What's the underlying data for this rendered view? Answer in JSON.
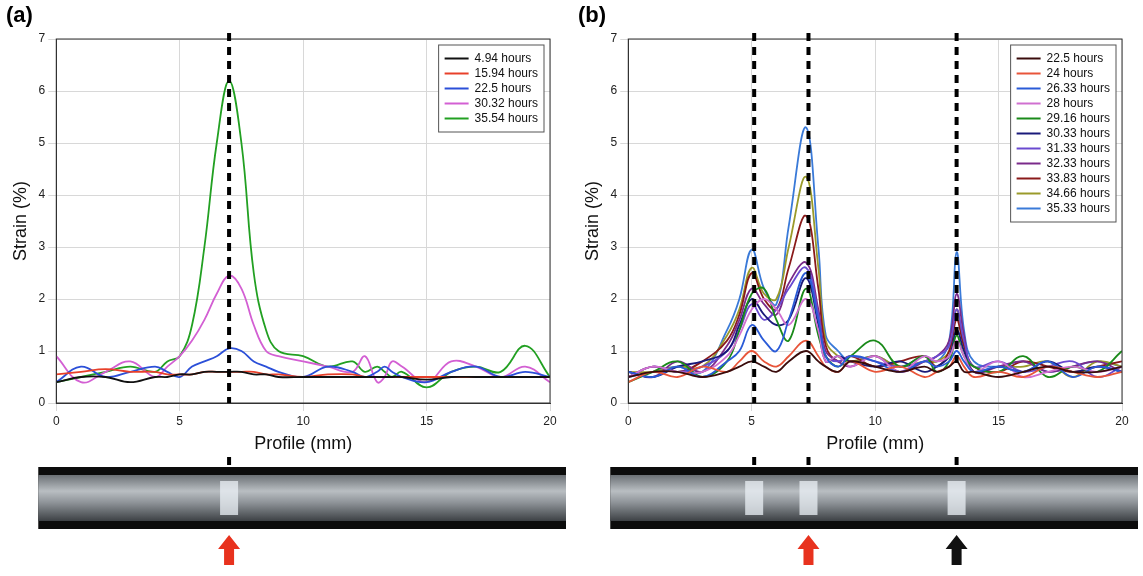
{
  "chart_data": [
    {
      "type": "line",
      "panel_label": "(a)",
      "x_label": "Profile (mm)",
      "y_label": "Strain (%)",
      "xlim": [
        0,
        20
      ],
      "xticks": [
        0,
        5,
        10,
        15,
        20
      ],
      "ylim": [
        0,
        7
      ],
      "yticks": [
        0,
        1,
        2,
        3,
        4,
        5,
        6,
        7
      ],
      "grid": true,
      "legend": "upper right",
      "x": [
        0,
        1,
        2,
        3,
        4,
        4.5,
        5,
        5.5,
        6,
        6.5,
        7,
        7.5,
        8,
        8.5,
        9,
        10,
        11,
        12,
        12.5,
        13,
        13.3,
        13.6,
        14,
        15,
        16,
        17,
        18,
        19,
        20
      ],
      "series": [
        {
          "name": "4.94 hours",
          "color": "#111111",
          "values": [
            0.4,
            0.5,
            0.5,
            0.4,
            0.5,
            0.5,
            0.55,
            0.55,
            0.6,
            0.6,
            0.6,
            0.6,
            0.55,
            0.55,
            0.5,
            0.5,
            0.5,
            0.5,
            0.5,
            0.5,
            0.5,
            0.5,
            0.5,
            0.45,
            0.5,
            0.5,
            0.5,
            0.5,
            0.5
          ]
        },
        {
          "name": "15.94 hours",
          "color": "#e8402a",
          "values": [
            0.55,
            0.6,
            0.65,
            0.6,
            0.6,
            0.55,
            0.55,
            0.55,
            0.6,
            0.6,
            0.6,
            0.6,
            0.6,
            0.55,
            0.55,
            0.5,
            0.55,
            0.55,
            0.5,
            0.5,
            0.5,
            0.5,
            0.5,
            0.5,
            0.5,
            0.5,
            0.5,
            0.5,
            0.5
          ]
        },
        {
          "name": "22.5 hours",
          "color": "#2b4fd8",
          "values": [
            0.4,
            0.7,
            0.5,
            0.6,
            0.7,
            0.6,
            0.5,
            0.7,
            0.8,
            0.9,
            1.05,
            1.0,
            0.8,
            0.7,
            0.6,
            0.5,
            0.7,
            0.6,
            0.5,
            0.6,
            0.7,
            0.6,
            0.5,
            0.4,
            0.6,
            0.7,
            0.5,
            0.6,
            0.5
          ]
        },
        {
          "name": "30.32 hours",
          "color": "#d35fd3",
          "values": [
            0.9,
            0.4,
            0.6,
            0.8,
            0.5,
            0.7,
            0.9,
            1.2,
            1.6,
            2.1,
            2.45,
            2.2,
            1.5,
            1.0,
            0.9,
            0.8,
            0.7,
            0.6,
            0.9,
            0.4,
            0.5,
            0.8,
            0.7,
            0.4,
            0.8,
            0.7,
            0.5,
            0.7,
            0.4
          ]
        },
        {
          "name": "35.54 hours",
          "color": "#22a022",
          "values": [
            0.4,
            0.5,
            0.6,
            0.7,
            0.6,
            0.8,
            0.9,
            1.5,
            3.0,
            5.0,
            6.2,
            5.0,
            2.5,
            1.4,
            1.0,
            0.9,
            0.7,
            0.8,
            0.6,
            0.7,
            0.6,
            0.5,
            0.6,
            0.3,
            0.6,
            0.7,
            0.6,
            1.1,
            0.5
          ]
        }
      ],
      "marked_x": [
        7
      ],
      "arrows": [
        {
          "x": 7,
          "color": "#e8321e"
        }
      ]
    },
    {
      "type": "line",
      "panel_label": "(b)",
      "x_label": "Profile (mm)",
      "y_label": "Strain (%)",
      "xlim": [
        0,
        20
      ],
      "xticks": [
        0,
        5,
        10,
        15,
        20
      ],
      "ylim": [
        0,
        7
      ],
      "yticks": [
        0,
        1,
        2,
        3,
        4,
        5,
        6,
        7
      ],
      "grid": true,
      "legend": "upper right",
      "x": [
        0,
        1,
        2,
        3,
        4,
        4.5,
        5,
        5.5,
        6,
        6.5,
        7.2,
        7.7,
        8,
        8.5,
        9,
        10,
        11,
        12,
        12.5,
        13,
        13.3,
        13.6,
        14,
        15,
        16,
        17,
        18,
        19,
        20
      ],
      "series": [
        {
          "name": "22.5 hours",
          "color": "#3a0c0c",
          "values": [
            0.5,
            0.6,
            0.6,
            0.5,
            0.6,
            0.7,
            0.8,
            0.7,
            0.6,
            0.8,
            1.0,
            0.8,
            0.7,
            0.6,
            0.8,
            0.7,
            0.6,
            0.7,
            0.6,
            0.7,
            0.8,
            0.6,
            0.6,
            0.5,
            0.6,
            0.7,
            0.6,
            0.6,
            0.7
          ]
        },
        {
          "name": "24 hours",
          "color": "#e8553a",
          "values": [
            0.4,
            0.6,
            0.5,
            0.7,
            0.6,
            0.8,
            1.0,
            0.8,
            0.7,
            0.9,
            1.2,
            0.9,
            0.7,
            0.6,
            0.8,
            0.6,
            0.7,
            0.5,
            0.6,
            0.7,
            0.9,
            0.7,
            0.5,
            0.6,
            0.5,
            0.7,
            0.6,
            0.5,
            0.6
          ]
        },
        {
          "name": "26.33 hours",
          "color": "#2a5bd7",
          "values": [
            0.6,
            0.5,
            0.7,
            0.5,
            0.8,
            1.0,
            1.5,
            1.2,
            1.0,
            1.6,
            2.5,
            1.6,
            0.9,
            0.7,
            0.9,
            0.8,
            0.6,
            0.8,
            0.7,
            0.8,
            1.0,
            0.8,
            0.6,
            0.7,
            0.6,
            0.8,
            0.5,
            0.7,
            0.6
          ]
        },
        {
          "name": "28 hours",
          "color": "#d070d0",
          "values": [
            0.5,
            0.7,
            0.6,
            0.6,
            0.9,
            1.3,
            1.8,
            2.0,
            1.8,
            1.5,
            2.0,
            1.4,
            0.8,
            0.9,
            0.7,
            0.9,
            0.6,
            0.9,
            0.8,
            0.9,
            1.2,
            0.9,
            0.6,
            0.8,
            0.5,
            0.6,
            0.7,
            0.6,
            0.7
          ]
        },
        {
          "name": "29.16 hours",
          "color": "#1a8a1a",
          "values": [
            0.4,
            0.6,
            0.8,
            0.5,
            0.8,
            1.4,
            2.1,
            2.2,
            1.6,
            1.2,
            2.2,
            1.3,
            0.9,
            0.7,
            0.9,
            1.2,
            0.7,
            0.9,
            0.6,
            0.8,
            1.3,
            0.9,
            0.7,
            0.6,
            0.9,
            0.5,
            0.7,
            0.6,
            1.0
          ]
        },
        {
          "name": "30.33 hours",
          "color": "#1a1a7a",
          "values": [
            0.6,
            0.5,
            0.7,
            0.8,
            1.0,
            1.5,
            2.0,
            1.7,
            1.5,
            1.6,
            2.4,
            1.5,
            0.8,
            0.9,
            0.8,
            0.7,
            0.8,
            0.6,
            0.7,
            0.9,
            1.4,
            1.0,
            0.6,
            0.7,
            0.6,
            0.8,
            0.6,
            0.7,
            0.6
          ]
        },
        {
          "name": "31.33 hours",
          "color": "#6a4ad0",
          "values": [
            0.5,
            0.7,
            0.6,
            0.7,
            1.0,
            1.4,
            1.9,
            1.6,
            1.8,
            2.2,
            2.6,
            1.7,
            0.9,
            0.8,
            0.9,
            0.8,
            0.7,
            0.8,
            0.9,
            1.1,
            1.8,
            1.2,
            0.7,
            0.8,
            0.6,
            0.7,
            0.8,
            0.5,
            0.7
          ]
        },
        {
          "name": "32.33 hours",
          "color": "#7a2a8a",
          "values": [
            0.6,
            0.5,
            0.8,
            0.6,
            1.1,
            1.6,
            2.2,
            1.9,
            1.7,
            2.3,
            2.7,
            1.8,
            1.0,
            0.8,
            0.7,
            0.9,
            0.6,
            0.8,
            0.9,
            1.2,
            2.1,
            1.3,
            0.6,
            0.7,
            0.8,
            0.6,
            0.7,
            0.8,
            0.6
          ]
        },
        {
          "name": "33.83 hours",
          "color": "#8a1a1a",
          "values": [
            0.5,
            0.7,
            0.6,
            0.8,
            1.2,
            1.7,
            2.5,
            2.0,
            1.8,
            2.6,
            3.6,
            2.2,
            1.1,
            0.8,
            0.9,
            0.7,
            0.8,
            0.9,
            0.7,
            1.0,
            1.6,
            1.1,
            0.7,
            0.6,
            0.8,
            0.7,
            0.6,
            0.7,
            0.8
          ]
        },
        {
          "name": "34.66 hours",
          "color": "#9a9a2a",
          "values": [
            0.6,
            0.6,
            0.7,
            0.7,
            1.3,
            1.8,
            2.6,
            2.1,
            2.0,
            3.0,
            4.35,
            2.6,
            1.2,
            0.9,
            0.8,
            0.9,
            0.7,
            0.8,
            0.8,
            1.0,
            1.8,
            1.1,
            0.6,
            0.7,
            0.7,
            0.8,
            0.5,
            0.8,
            0.7
          ]
        },
        {
          "name": "35.33 hours",
          "color": "#3a7ad8",
          "values": [
            0.5,
            0.6,
            0.7,
            0.6,
            1.4,
            2.0,
            2.95,
            2.2,
            1.9,
            3.4,
            5.3,
            3.0,
            1.3,
            1.0,
            0.8,
            0.9,
            0.7,
            0.9,
            0.8,
            1.2,
            2.9,
            1.4,
            0.8,
            0.7,
            0.8,
            0.6,
            0.7,
            0.8,
            0.7
          ]
        }
      ],
      "marked_x": [
        5.1,
        7.3,
        13.3
      ],
      "arrows": [
        {
          "x": 7.3,
          "color": "#e8321e"
        },
        {
          "x": 13.3,
          "color": "#111111"
        }
      ]
    }
  ]
}
